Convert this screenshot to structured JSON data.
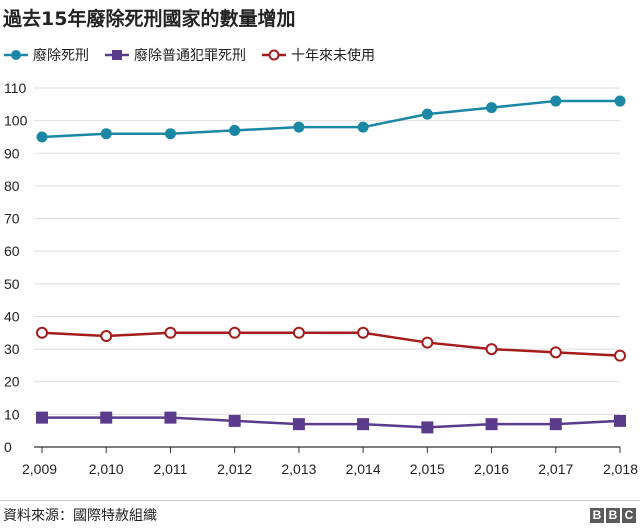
{
  "chart_data": {
    "type": "line",
    "title": "過去15年廢除死刑國家的數量增加",
    "source": "資料來源：國際特赦組織",
    "logo": "BBC",
    "x": [
      "2,009",
      "2,010",
      "2,011",
      "2,012",
      "2,013",
      "2,014",
      "2,015",
      "2,016",
      "2,017",
      "2,018"
    ],
    "y_ticks": [
      "0",
      "10",
      "20",
      "30",
      "40",
      "50",
      "60",
      "70",
      "80",
      "90",
      "100",
      "110"
    ],
    "ylim": [
      0,
      110
    ],
    "grid": true,
    "legend_position": "top-left",
    "series": [
      {
        "name": "廢除死刑",
        "marker": "circle-filled",
        "color": "#1b87a5",
        "values": [
          95,
          96,
          96,
          97,
          98,
          98,
          102,
          104,
          106,
          106
        ]
      },
      {
        "name": "廢除普通犯罪死刑",
        "marker": "square",
        "color": "#5b3b8c",
        "values": [
          9,
          9,
          9,
          8,
          7,
          7,
          6,
          7,
          7,
          8
        ]
      },
      {
        "name": "十年來未使用",
        "marker": "circle-open",
        "color": "#a51c1c",
        "values": [
          35,
          34,
          35,
          35,
          35,
          35,
          32,
          30,
          29,
          28
        ]
      }
    ]
  }
}
